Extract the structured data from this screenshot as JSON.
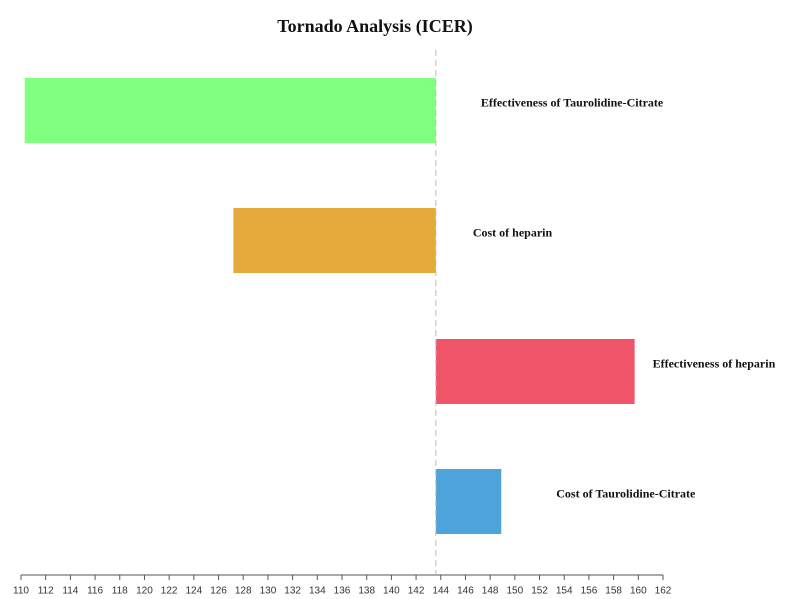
{
  "chart_data": {
    "type": "tornado",
    "title": "Tornado Analysis (ICER)",
    "categories": [
      "Effectiveness of Taurolidine-Citrate",
      "Cost of heparin",
      "Effectiveness of heparin",
      "Cost of Taurolidine-Citrate"
    ],
    "base": 143.6,
    "values": [
      110.3,
      127.2,
      159.7,
      148.9
    ],
    "colors": [
      "#80ff80",
      "#e4aa3c",
      "#f05468",
      "#4fa3db"
    ],
    "xlim": [
      110,
      162
    ],
    "xticks": [
      110,
      112,
      114,
      116,
      118,
      120,
      122,
      124,
      126,
      128,
      130,
      132,
      134,
      136,
      138,
      140,
      142,
      144,
      146,
      148,
      150,
      152,
      154,
      156,
      158,
      160,
      162
    ]
  }
}
